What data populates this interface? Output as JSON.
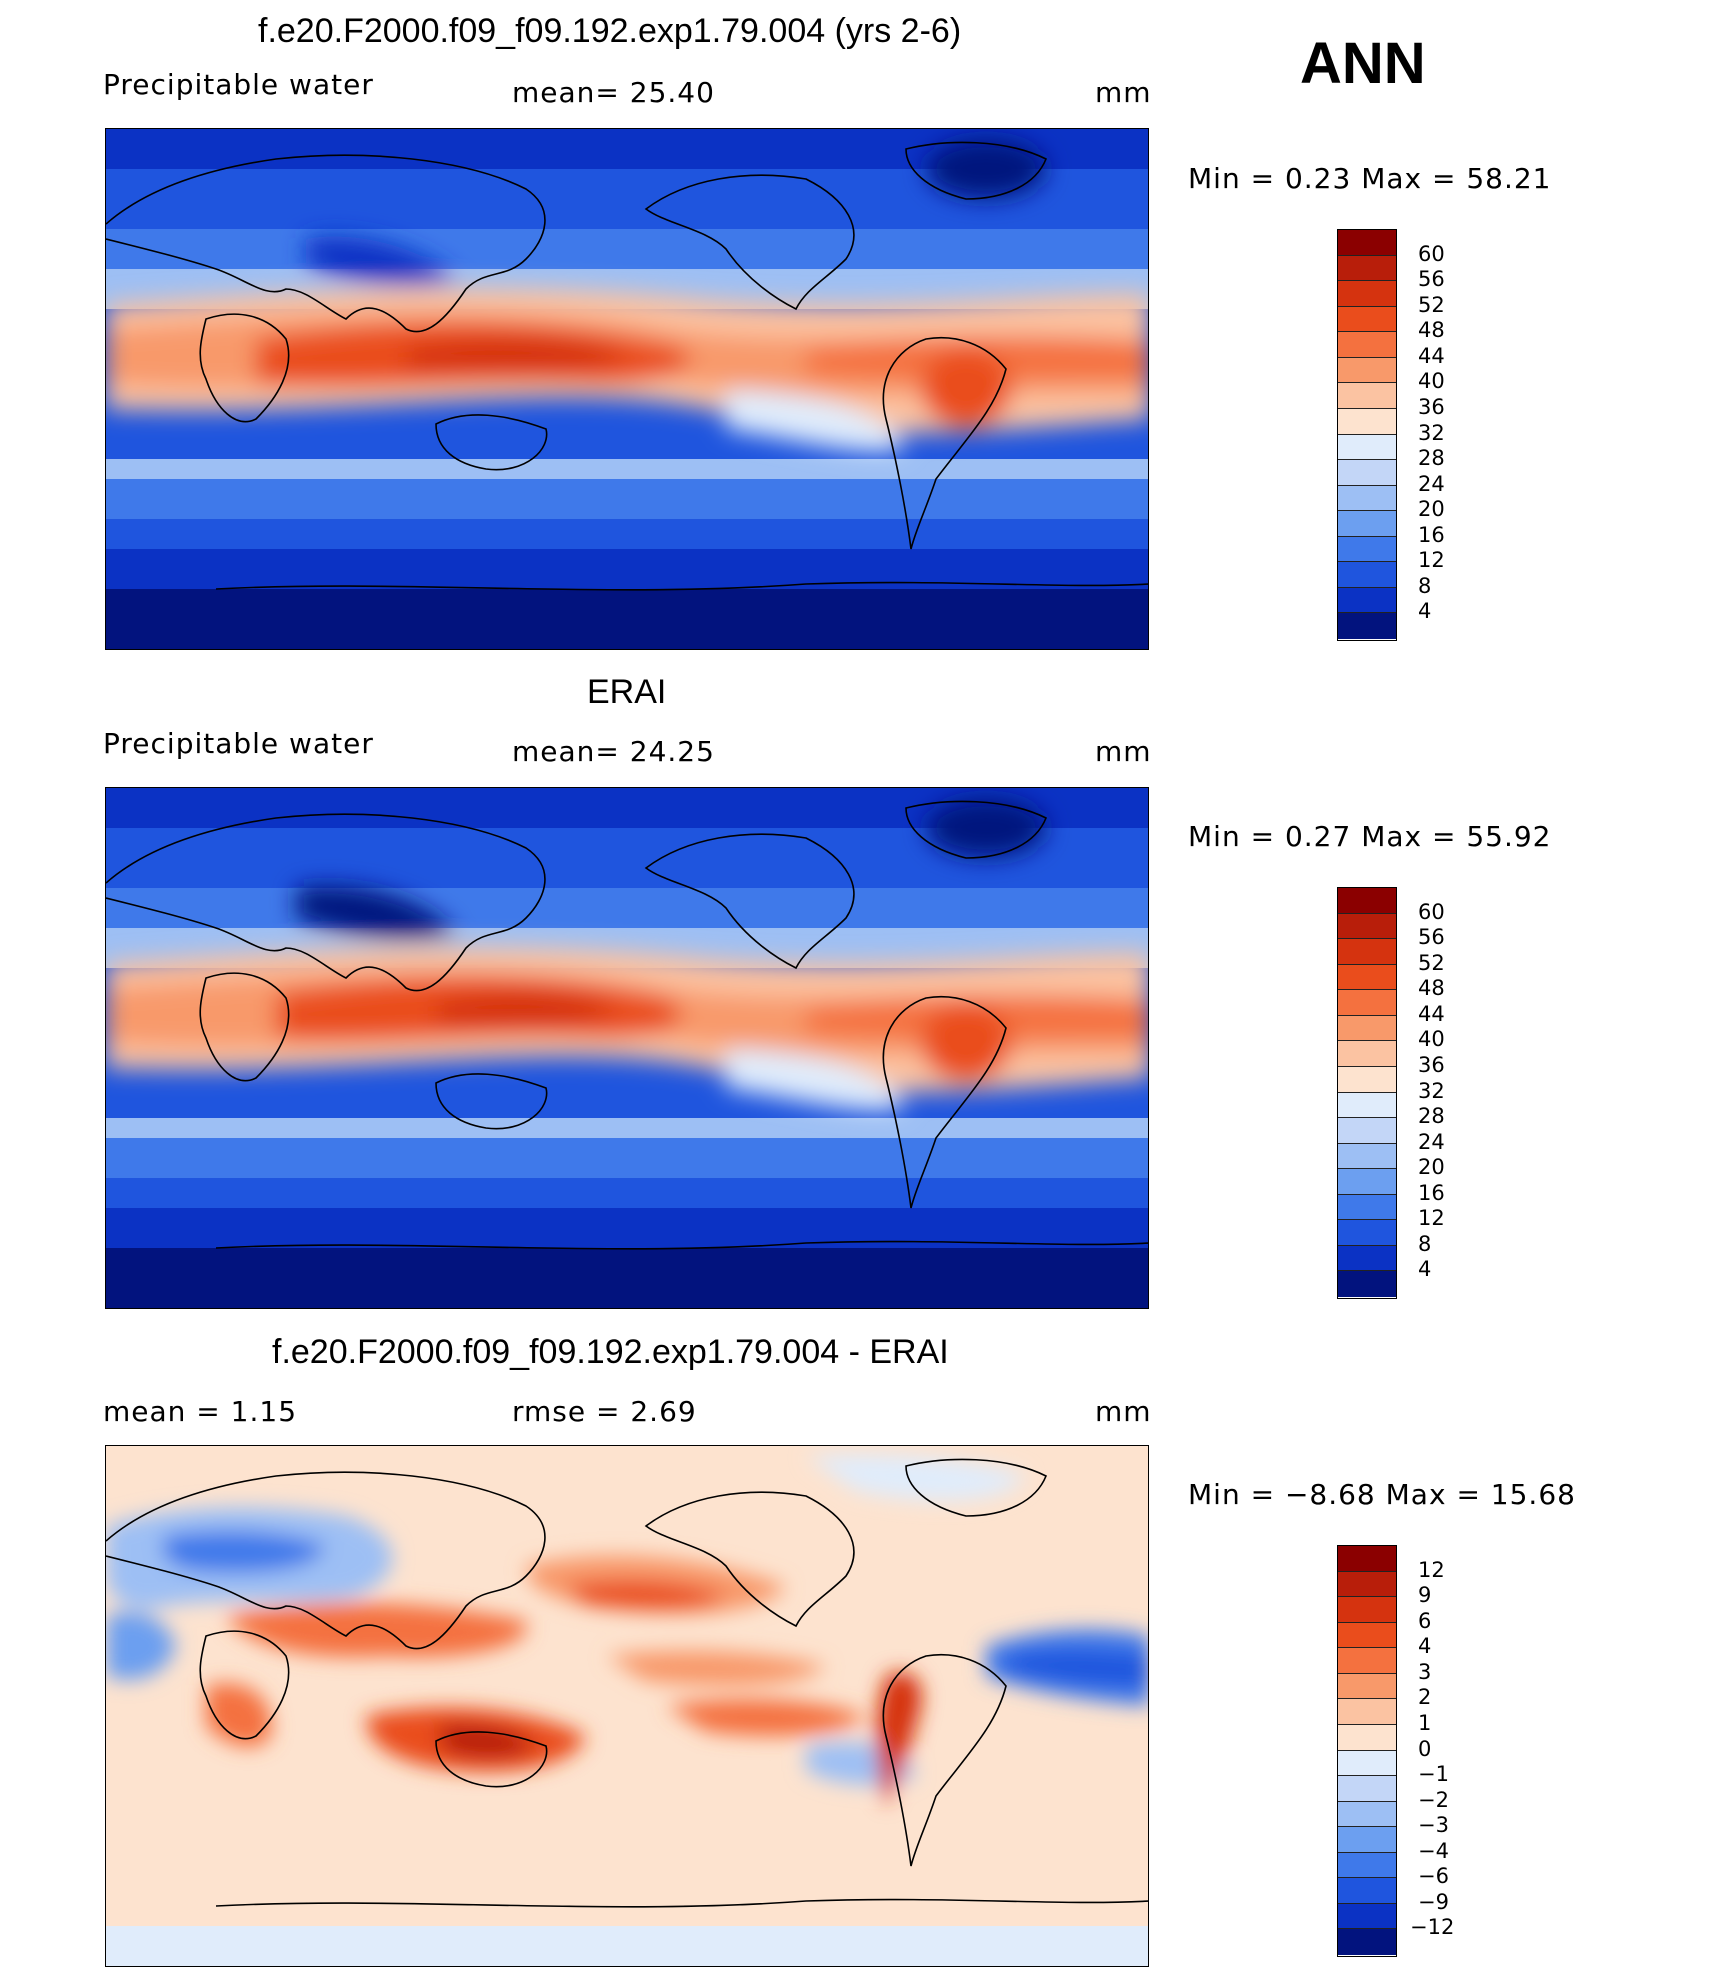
{
  "season": "ANN",
  "panels": [
    {
      "title": "f.e20.F2000.f09_f09.192.exp1.79.004 (yrs 2-6)",
      "left_label": "Precipitable  water",
      "mid_label": "mean=   25.40",
      "units": "mm",
      "minmax": "Min  =     0.23  Max  =    58.21",
      "colorbar": {
        "labels": [
          "60",
          "56",
          "52",
          "48",
          "44",
          "40",
          "36",
          "32",
          "28",
          "24",
          "20",
          "16",
          "12",
          "8",
          "4"
        ],
        "colors": [
          "#8b0000",
          "#b81e0a",
          "#d5330f",
          "#ea4d1c",
          "#f4713f",
          "#f8996a",
          "#fbc3a2",
          "#fde3cf",
          "#e0ecfb",
          "#c3d6f7",
          "#9dbff4",
          "#6c9ff0",
          "#3f79ea",
          "#1f55de",
          "#0b32c4",
          "#02137e"
        ]
      }
    },
    {
      "title": "ERAI",
      "left_label": "Precipitable  water",
      "mid_label": "mean=   24.25",
      "units": "mm",
      "minmax": "Min  =     0.27  Max  =    55.92",
      "colorbar": {
        "labels": [
          "60",
          "56",
          "52",
          "48",
          "44",
          "40",
          "36",
          "32",
          "28",
          "24",
          "20",
          "16",
          "12",
          "8",
          "4"
        ],
        "colors": [
          "#8b0000",
          "#b81e0a",
          "#d5330f",
          "#ea4d1c",
          "#f4713f",
          "#f8996a",
          "#fbc3a2",
          "#fde3cf",
          "#e0ecfb",
          "#c3d6f7",
          "#9dbff4",
          "#6c9ff0",
          "#3f79ea",
          "#1f55de",
          "#0b32c4",
          "#02137e"
        ]
      }
    },
    {
      "title": "f.e20.F2000.f09_f09.192.exp1.79.004 - ERAI",
      "left_label": "mean  =     1.15",
      "mid_label": "rmse  =     2.69",
      "units": "mm",
      "minmax": "Min  =   −8.68  Max  =    15.68",
      "colorbar": {
        "labels": [
          "12",
          "9",
          "6",
          "4",
          "3",
          "2",
          "1",
          "0",
          "−1",
          "−2",
          "−3",
          "−4",
          "−6",
          "−9",
          "−12"
        ],
        "colors": [
          "#8b0000",
          "#b81e0a",
          "#d5330f",
          "#ea4d1c",
          "#f4713f",
          "#f8996a",
          "#fbc3a2",
          "#fde3cf",
          "#e0ecfb",
          "#c3d6f7",
          "#9dbff4",
          "#6c9ff0",
          "#3f79ea",
          "#1f55de",
          "#0b32c4",
          "#02137e"
        ]
      }
    }
  ]
}
